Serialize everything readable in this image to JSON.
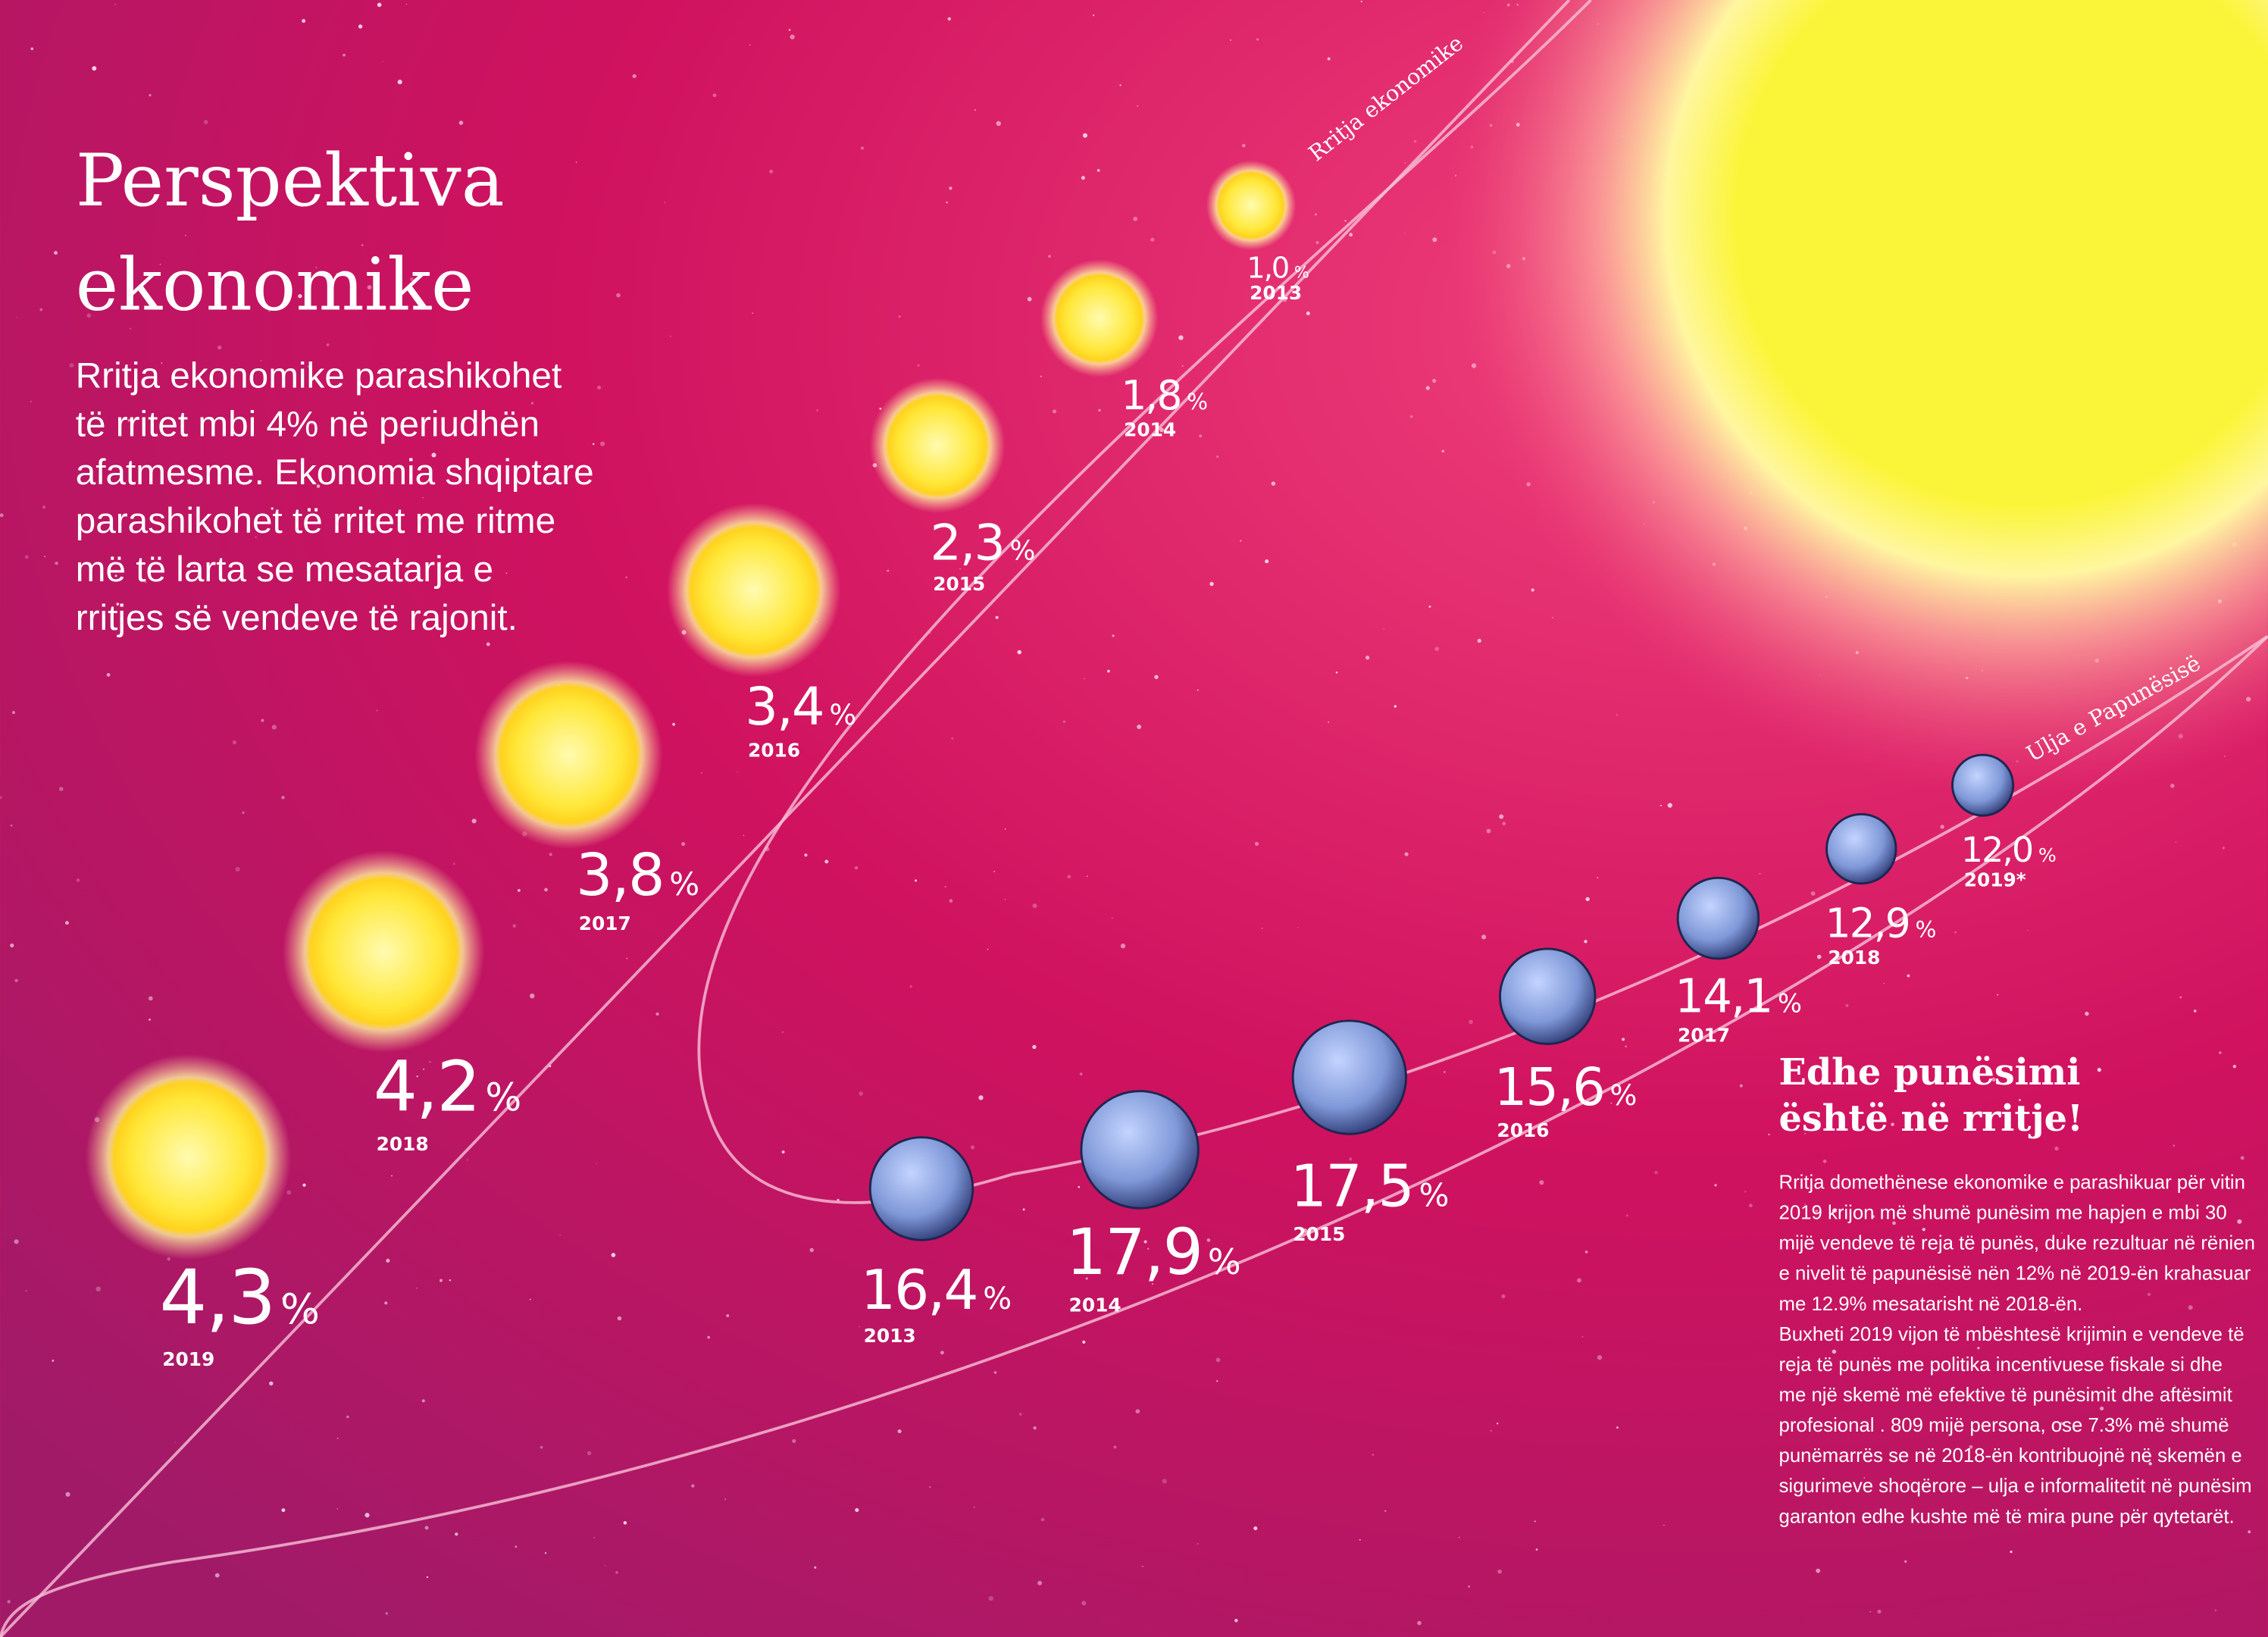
{
  "header": {
    "title": [
      "Perspektiva",
      "ekonomike"
    ],
    "intro": [
      "Rritja ekonomike parashikohet",
      "të rritet mbi 4% në periudhën",
      "afatmesme. Ekonomia shqiptare",
      "parashikohet të rritet me ritme",
      "më të larta se mesatarja e",
      "rritjes së vendeve të rajonit."
    ]
  },
  "sidebar": {
    "title": [
      "Edhe punësimi",
      "është në rritje!"
    ],
    "lines": [
      "Rritja domethënese ekonomike e parashikuar për vitin",
      "2019 krijon më shumë punësim me hapjen e mbi 30",
      "mijë vendeve të reja të punës, duke rezultuar në rënien",
      "e nivelit të papunësisë nën 12% në 2019-ën krahasuar",
      "me 12.9% mesatarisht në 2018-ën.",
      "Buxheti 2019 vijon të mbështesë krijimin e vendeve të",
      "reja të punës me politika incentivuese fiskale si dhe",
      "me një skemë më efektive të punësimit dhe aftësimit",
      "profesional . 809 mijë persona, ose 7.3% më shumë",
      "punëmarrës se në 2018-ën kontribuojnë në skemën e",
      "sigurimeve shoqërore – ulja e informalitetit në punësim",
      "garanton edhe kushte më të mira pune për qytetarët."
    ]
  },
  "chart_data": [
    {
      "type": "sun",
      "title": "Rritja ekonomike",
      "unit": "%",
      "color": "#ffe94a",
      "categories": [
        "2013",
        "2014",
        "2015",
        "2016",
        "2017",
        "2018",
        "2019"
      ],
      "values": [
        1.0,
        1.8,
        2.3,
        3.4,
        3.8,
        4.2,
        4.3
      ],
      "value_labels": [
        "1,0",
        "1,8",
        "2,3",
        "3,4",
        "3,8",
        "4,2",
        "4,3"
      ]
    },
    {
      "type": "planet",
      "title": "Ulja e Papunësisë",
      "unit": "%",
      "color": "#8fa8e0",
      "categories": [
        "2013",
        "2014",
        "2015",
        "2016",
        "2017",
        "2018",
        "2019*"
      ],
      "values": [
        16.4,
        17.9,
        17.5,
        15.6,
        14.1,
        12.9,
        12.0
      ],
      "value_labels": [
        "16,4",
        "17,9",
        "17,5",
        "15,6",
        "14,1",
        "12,9",
        "12,0"
      ]
    }
  ]
}
